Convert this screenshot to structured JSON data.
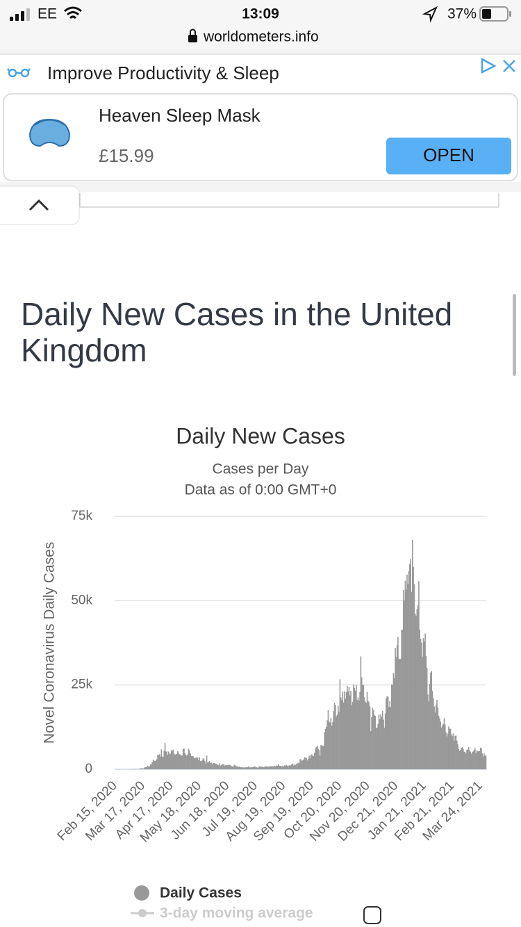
{
  "status_bar": {
    "carrier": "EE",
    "time": "13:09",
    "battery": "37%",
    "url": "worldometers.info"
  },
  "ad": {
    "headline": "Improve Productivity & Sleep",
    "product": "Heaven Sleep Mask",
    "price": "£15.99",
    "button": "OPEN"
  },
  "page": {
    "heading": "Daily New Cases in the United Kingdom"
  },
  "chart_data": {
    "type": "bar",
    "title": "Daily New Cases",
    "subtitle": "Cases per Day",
    "note": "Data as of 0:00 GMT+0",
    "y_label": "Novel Coronavirus Daily Cases",
    "color": "#999999",
    "grid": true,
    "ylim": [
      0,
      75000
    ],
    "yticks": [
      0,
      {
        "value": 25000,
        "label": "25k"
      },
      {
        "value": 50000,
        "label": "50k"
      },
      {
        "value": 75000,
        "label": "75k"
      }
    ],
    "legend": [
      {
        "name": "Daily Cases",
        "color": "#999999"
      },
      {
        "name": "3-day moving average",
        "color": "#cccccc"
      }
    ],
    "categories": [
      "Feb 15, 2020",
      null,
      null,
      null,
      null,
      null,
      null,
      null,
      null,
      null,
      null,
      null,
      null,
      null,
      null,
      null,
      null,
      null,
      null,
      null,
      null,
      null,
      null,
      null,
      null,
      null,
      null,
      null,
      null,
      null,
      null,
      "Mar 17, 2020",
      null,
      null,
      null,
      null,
      null,
      null,
      null,
      null,
      null,
      null,
      null,
      null,
      null,
      null,
      null,
      null,
      null,
      null,
      null,
      null,
      null,
      null,
      null,
      null,
      null,
      null,
      null,
      null,
      null,
      null,
      "Apr 17, 2020",
      null,
      null,
      null,
      null,
      null,
      null,
      null,
      null,
      null,
      null,
      null,
      null,
      null,
      null,
      null,
      null,
      null,
      null,
      null,
      null,
      null,
      null,
      null,
      null,
      null,
      null,
      null,
      null,
      null,
      null,
      "May 18, 2020",
      null,
      null,
      null,
      null,
      null,
      null,
      null,
      null,
      null,
      null,
      null,
      null,
      null,
      null,
      null,
      null,
      null,
      null,
      null,
      null,
      null,
      null,
      null,
      null,
      null,
      null,
      null,
      null,
      null,
      null,
      "Jun 18, 2020",
      null,
      null,
      null,
      null,
      null,
      null,
      null,
      null,
      null,
      null,
      null,
      null,
      null,
      null,
      null,
      null,
      null,
      null,
      null,
      null,
      null,
      null,
      null,
      null,
      null,
      null,
      null,
      null,
      null,
      null,
      "Jul 19, 2020",
      null,
      null,
      null,
      null,
      null,
      null,
      null,
      null,
      null,
      null,
      null,
      null,
      null,
      null,
      null,
      null,
      null,
      null,
      null,
      null,
      null,
      null,
      null,
      null,
      null,
      null,
      null,
      null,
      null,
      null,
      "Aug 19, 2020",
      null,
      null,
      null,
      null,
      null,
      null,
      null,
      null,
      null,
      null,
      null,
      null,
      null,
      null,
      null,
      null,
      null,
      null,
      null,
      null,
      null,
      null,
      null,
      null,
      null,
      null,
      null,
      null,
      null,
      null,
      "Sep 19, 2020",
      null,
      null,
      null,
      null,
      null,
      null,
      null,
      null,
      null,
      null,
      null,
      null,
      null,
      null,
      null,
      null,
      null,
      null,
      null,
      null,
      null,
      null,
      null,
      null,
      null,
      null,
      null,
      null,
      null,
      null,
      "Oct 20, 2020",
      null,
      null,
      null,
      null,
      null,
      null,
      null,
      null,
      null,
      null,
      null,
      null,
      null,
      null,
      null,
      null,
      null,
      null,
      null,
      null,
      null,
      null,
      null,
      null,
      null,
      null,
      null,
      null,
      null,
      null,
      "Nov 20, 2020",
      null,
      null,
      null,
      null,
      null,
      null,
      null,
      null,
      null,
      null,
      null,
      null,
      null,
      null,
      null,
      null,
      null,
      null,
      null,
      null,
      null,
      null,
      null,
      null,
      null,
      null,
      null,
      null,
      null,
      null,
      "Dec 21, 2020",
      null,
      null,
      null,
      null,
      null,
      null,
      null,
      null,
      null,
      null,
      null,
      null,
      null,
      null,
      null,
      null,
      null,
      null,
      null,
      null,
      null,
      null,
      null,
      null,
      null,
      null,
      null,
      null,
      null,
      null,
      "Jan 21, 2021",
      null,
      null,
      null,
      null,
      null,
      null,
      null,
      null,
      null,
      null,
      null,
      null,
      null,
      null,
      null,
      null,
      null,
      null,
      null,
      null,
      null,
      null,
      null,
      null,
      null,
      null,
      null,
      null,
      null,
      null,
      "Feb 21, 2021",
      null,
      null,
      null,
      null,
      null,
      null,
      null,
      null,
      null,
      null,
      null,
      null,
      null,
      null,
      null,
      null,
      null,
      null,
      null,
      null,
      null,
      null,
      null,
      null,
      null,
      null,
      null,
      null,
      null,
      null,
      "Mar 24, 2021",
      null,
      null,
      null,
      null,
      null,
      null
    ],
    "values": [
      0,
      0,
      0,
      0,
      0,
      0,
      0,
      0,
      0,
      0,
      0,
      0,
      3,
      10,
      5,
      13,
      4,
      11,
      34,
      30,
      48,
      43,
      67,
      46,
      50,
      52,
      83,
      134,
      208,
      342,
      251,
      152,
      407,
      676,
      643,
      714,
      1035,
      665,
      967,
      1427,
      1452,
      2129,
      2885,
      2546,
      2433,
      2619,
      3009,
      4324,
      4244,
      4450,
      3735,
      5903,
      3802,
      3634,
      5491,
      7800,
      5234,
      5288,
      4342,
      5252,
      4603,
      4617,
      5599,
      5526,
      5850,
      4676,
      4301,
      4451,
      4583,
      5386,
      4913,
      4463,
      4309,
      3996,
      4076,
      6032,
      6201,
      4806,
      4339,
      3985,
      4406,
      6111,
      5614,
      4649,
      3896,
      3923,
      3877,
      3403,
      3242,
      3446,
      3560,
      3450,
      2684,
      3534,
      2412,
      2472,
      2615,
      3287,
      2959,
      2409,
      1625,
      4043,
      2013,
      2095,
      2445,
      1937,
      1936,
      1570,
      1871,
      1871,
      1805,
      1650,
      1557,
      1326,
      1205,
      1741,
      1003,
      1266,
      1541,
      1425,
      1514,
      1056,
      1279,
      1115,
      1218,
      1346,
      1295,
      1221,
      958,
      874,
      653,
      1118,
      1380,
      1006,
      890,
      815,
      689,
      829,
      576,
      624,
      516,
      624,
      352,
      581,
      630,
      512,
      642,
      820,
      650,
      530,
      597,
      538,
      642,
      687,
      827,
      650,
      580,
      445,
      560,
      769,
      767,
      769,
      748,
      685,
      581,
      763,
      846,
      880,
      743,
      744,
      938,
      670,
      893,
      950,
      871,
      758,
      1062,
      816,
      1148,
      1009,
      1441,
      1062,
      1012,
      1040,
      713,
      1089,
      812,
      1182,
      1033,
      1288,
      1041,
      853,
      1184,
      1048,
      1276,
      1522,
      1715,
      1108,
      1406,
      1295,
      1508,
      1735,
      1940,
      1813,
      2988,
      2948,
      2460,
      2659,
      2919,
      3539,
      3497,
      3330,
      2621,
      3105,
      3991,
      3395,
      4322,
      4422,
      3899,
      3899,
      4926,
      6178,
      6634,
      6874,
      6042,
      5693,
      4044,
      7143,
      7108,
      6914,
      6968,
      11000,
      12000,
      12594,
      14542,
      17540,
      14162,
      13864,
      15166,
      12872,
      13972,
      17234,
      19724,
      18980,
      15650,
      16171,
      18804,
      16982,
      26688,
      21331,
      20530,
      23012,
      19790,
      23065,
      20890,
      22885,
      24701,
      23065,
      24405,
      21915,
      23254,
      18950,
      20018,
      25177,
      24141,
      23287,
      24957,
      20572,
      21350,
      20412,
      22950,
      33470,
      27301,
      24962,
      24957,
      21363,
      20051,
      19609,
      22915,
      20252,
      19875,
      18662,
      11299,
      15450,
      18213,
      17555,
      16022,
      15871,
      12155,
      12330,
      13430,
      16170,
      14879,
      16298,
      15539,
      17272,
      14718,
      12282,
      16578,
      20964,
      21672,
      21502,
      18447,
      20263,
      18450,
      25161,
      25000,
      28507,
      27052,
      35928,
      33364,
      36804,
      39237,
      32725,
      32725,
      32725,
      41385,
      41385,
      53135,
      50023,
      55892,
      53285,
      57725,
      54990,
      58784,
      60916,
      62322,
      52618,
      68053,
      59937,
      54940,
      46169,
      45533,
      47525,
      48682,
      55761,
      41346,
      38598,
      37535,
      33355,
      38905,
      37892,
      40261,
      33552,
      30004,
      22195,
      20089,
      25308,
      28680,
      29079,
      23275,
      21088,
      18607,
      16840,
      19202,
      20634,
      18262,
      15845,
      15144,
      14104,
      12364,
      13013,
      13494,
      15144,
      13308,
      10972,
      9765,
      10625,
      12718,
      12057,
      12027,
      10406,
      9834,
      10641,
      8489,
      9938,
      9985,
      8523,
      7434,
      6035,
      5455,
      5766,
      6385,
      6573,
      6040,
      5177,
      5177,
      4712,
      5766,
      5926,
      6609,
      5534,
      5240,
      4618,
      5089,
      5294,
      5758,
      6303,
      4802,
      5587,
      5312,
      5342,
      5379,
      6397,
      6187,
      4715,
      3862,
      4654,
      4110,
      4040
    ]
  }
}
